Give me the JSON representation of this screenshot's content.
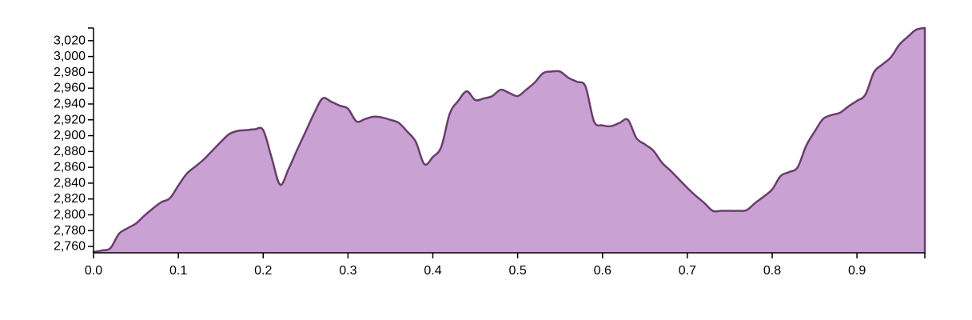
{
  "chart_data": {
    "type": "area",
    "title": "",
    "xlabel": "",
    "ylabel": "",
    "xlim": [
      0,
      0.98
    ],
    "ylim": [
      2752,
      3036
    ],
    "grid": false,
    "legend": "none",
    "colors": {
      "fill": "#c9a1d2",
      "stroke": "#6a3d6e",
      "axis": "#000000"
    },
    "x_ticks": [
      0.0,
      0.1,
      0.2,
      0.3,
      0.4,
      0.5,
      0.6,
      0.7,
      0.8,
      0.9
    ],
    "x_tick_labels": [
      "0.0",
      "0.1",
      "0.2",
      "0.3",
      "0.4",
      "0.5",
      "0.6",
      "0.7",
      "0.8",
      "0.9"
    ],
    "y_ticks": [
      2760,
      2780,
      2800,
      2820,
      2840,
      2860,
      2880,
      2900,
      2920,
      2940,
      2960,
      2980,
      3000,
      3020
    ],
    "y_tick_labels": [
      "2,760",
      "2,780",
      "2,800",
      "2,820",
      "2,840",
      "2,860",
      "2,880",
      "2,900",
      "2,920",
      "2,940",
      "2,960",
      "2,980",
      "3,000",
      "3,020"
    ],
    "series": [
      {
        "x": [
          0.0,
          0.01,
          0.02,
          0.03,
          0.04,
          0.05,
          0.06,
          0.07,
          0.08,
          0.09,
          0.1,
          0.11,
          0.12,
          0.13,
          0.14,
          0.15,
          0.16,
          0.17,
          0.18,
          0.19,
          0.2,
          0.21,
          0.22,
          0.23,
          0.24,
          0.25,
          0.26,
          0.27,
          0.28,
          0.29,
          0.3,
          0.31,
          0.32,
          0.33,
          0.34,
          0.35,
          0.36,
          0.37,
          0.38,
          0.39,
          0.4,
          0.41,
          0.42,
          0.43,
          0.44,
          0.45,
          0.46,
          0.47,
          0.48,
          0.49,
          0.5,
          0.51,
          0.52,
          0.53,
          0.54,
          0.55,
          0.56,
          0.57,
          0.58,
          0.59,
          0.6,
          0.61,
          0.62,
          0.63,
          0.64,
          0.65,
          0.66,
          0.67,
          0.68,
          0.69,
          0.7,
          0.71,
          0.72,
          0.73,
          0.74,
          0.75,
          0.76,
          0.77,
          0.78,
          0.79,
          0.8,
          0.81,
          0.82,
          0.83,
          0.84,
          0.85,
          0.86,
          0.87,
          0.88,
          0.89,
          0.9,
          0.91,
          0.92,
          0.93,
          0.94,
          0.95,
          0.96,
          0.97,
          0.98
        ],
        "values": [
          2753,
          2755,
          2758,
          2776,
          2783,
          2789,
          2799,
          2808,
          2816,
          2821,
          2837,
          2852,
          2861,
          2870,
          2881,
          2892,
          2902,
          2906,
          2907,
          2908,
          2907,
          2872,
          2838,
          2858,
          2882,
          2905,
          2928,
          2947,
          2943,
          2938,
          2934,
          2918,
          2921,
          2924,
          2923,
          2920,
          2916,
          2905,
          2892,
          2864,
          2873,
          2886,
          2928,
          2944,
          2956,
          2945,
          2947,
          2950,
          2958,
          2954,
          2950,
          2958,
          2967,
          2979,
          2981,
          2981,
          2973,
          2968,
          2962,
          2918,
          2913,
          2912,
          2916,
          2920,
          2897,
          2889,
          2881,
          2866,
          2856,
          2845,
          2834,
          2824,
          2815,
          2805,
          2805,
          2805,
          2805,
          2806,
          2815,
          2823,
          2832,
          2849,
          2854,
          2860,
          2887,
          2905,
          2921,
          2926,
          2929,
          2937,
          2944,
          2952,
          2980,
          2990,
          2999,
          3015,
          3025,
          3034,
          3036
        ]
      }
    ]
  }
}
